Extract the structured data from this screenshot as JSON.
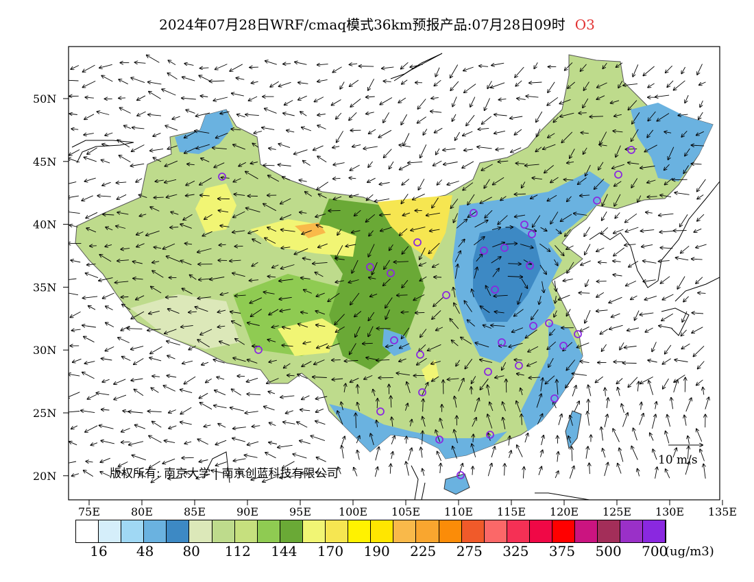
{
  "title": "2024年07月28日WRF/cmaq模式36km预报产品:07月28日09时",
  "species": "O3",
  "lat_labels": [
    "50N",
    "45N",
    "40N",
    "35N",
    "30N",
    "25N",
    "20N"
  ],
  "lon_labels": [
    "75E",
    "80E",
    "85E",
    "90E",
    "95E",
    "100E",
    "105E",
    "110E",
    "115E",
    "120E",
    "125E",
    "130E",
    "135E"
  ],
  "colorbar": {
    "colors": [
      "#ffffff",
      "#d5eefa",
      "#a0d8f4",
      "#6ab2e0",
      "#3d89c4",
      "#dce8b9",
      "#bedb8c",
      "#c6e07e",
      "#8fcb52",
      "#6aa936",
      "#f1f574",
      "#f6e651",
      "#fff200",
      "#ffe600",
      "#f9b94a",
      "#f9a62f",
      "#fb8c08",
      "#f05a2a",
      "#fb6868",
      "#f53055",
      "#f00846",
      "#ff0000",
      "#cb1480",
      "#a32e59",
      "#9a30c8",
      "#8a28e0"
    ],
    "labels": [
      "16",
      "48",
      "80",
      "112",
      "144",
      "170",
      "190",
      "225",
      "275",
      "325",
      "375",
      "500",
      "700"
    ],
    "unit": "(ug/m3)"
  },
  "legend": {
    "vector_label": "10 m/s"
  },
  "copyright": "版权所有: 南京大学 | 南京创蓝科技有限公司"
}
